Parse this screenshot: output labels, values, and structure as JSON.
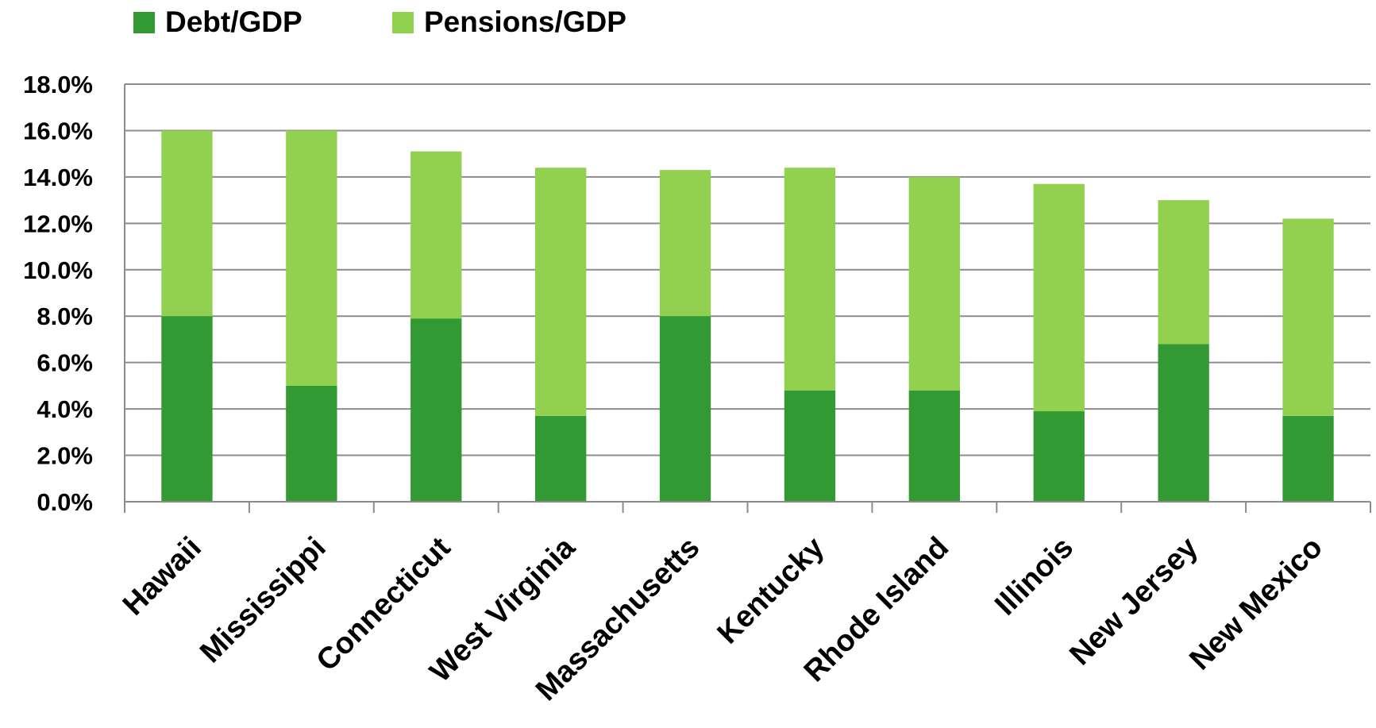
{
  "chart_data": {
    "type": "stacked_bar",
    "categories": [
      "Hawaii",
      "Mississippi",
      "Connecticut",
      "West Virginia",
      "Massachusetts",
      "Kentucky",
      "Rhode Island",
      "Illinois",
      "New Jersey",
      "New Mexico"
    ],
    "series": [
      {
        "name": "Debt/GDP",
        "color": "#339933",
        "values": [
          8.0,
          5.0,
          7.9,
          3.7,
          8.0,
          4.8,
          4.8,
          3.9,
          6.8,
          3.7
        ]
      },
      {
        "name": "Pensions/GDP",
        "color": "#92d050",
        "values": [
          8.0,
          11.0,
          7.2,
          10.7,
          6.3,
          9.6,
          9.2,
          9.8,
          6.2,
          8.5
        ]
      }
    ],
    "ylim": [
      0,
      18
    ],
    "yticks": [
      {
        "value": 0,
        "label": "0.0%"
      },
      {
        "value": 2,
        "label": "2.0%"
      },
      {
        "value": 4,
        "label": "4.0%"
      },
      {
        "value": 6,
        "label": "6.0%"
      },
      {
        "value": 8,
        "label": "8.0%"
      },
      {
        "value": 10,
        "label": "10.0%"
      },
      {
        "value": 12,
        "label": "12.0%"
      },
      {
        "value": 14,
        "label": "14.0%"
      },
      {
        "value": 16,
        "label": "16.0%"
      },
      {
        "value": 18,
        "label": "18.0%"
      }
    ],
    "grid": true,
    "legend": "top-left"
  }
}
